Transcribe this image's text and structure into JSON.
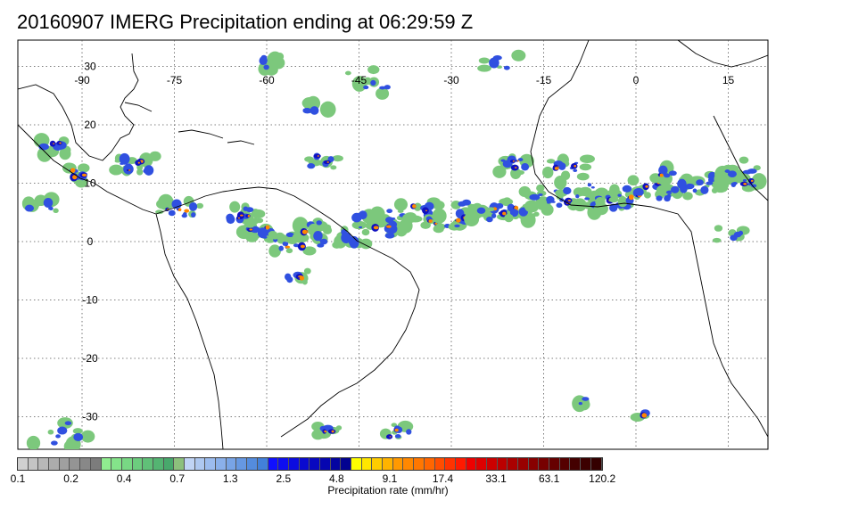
{
  "title": "20160907 IMERG Precipitation ending at 06:29:59 Z",
  "map": {
    "lon_labels": [
      "-90",
      "-75",
      "-60",
      "-45",
      "-30",
      "-15",
      "0",
      "15"
    ],
    "lat_labels": [
      "30",
      "20",
      "10",
      "0",
      "-10",
      "-20",
      "-30"
    ],
    "gridlines": "dotted"
  },
  "colorbar": {
    "caption": "Precipitation rate (mm/hr)",
    "tick_labels": [
      "0.1",
      "0.2",
      "0.4",
      "0.7",
      "1.3",
      "2.5",
      "4.8",
      "9.1",
      "17.4",
      "33.1",
      "63.1",
      "120.2"
    ],
    "colors": [
      "#d0d0d0",
      "#c4c4c4",
      "#b8b8b8",
      "#acacac",
      "#a0a0a0",
      "#949494",
      "#888888",
      "#7c7c7c",
      "#90ee90",
      "#84e48a",
      "#78d884",
      "#6ccc7e",
      "#60c078",
      "#54b472",
      "#48a86c",
      "#8cc07c",
      "#c0d4f4",
      "#aec8f0",
      "#9cbcee",
      "#8ab0ea",
      "#78a4e6",
      "#6698e2",
      "#548cde",
      "#4280da",
      "#1010ff",
      "#0e0ef0",
      "#0c0ce0",
      "#0a0ad0",
      "#0808c0",
      "#0606b0",
      "#0404a0",
      "#020290",
      "#ffff00",
      "#ffe600",
      "#ffcc00",
      "#ffb300",
      "#ff9900",
      "#ff8800",
      "#ff7700",
      "#ff6600",
      "#ff4d00",
      "#ff3300",
      "#ff1a00",
      "#ee0000",
      "#dd0000",
      "#cc0000",
      "#bb0000",
      "#aa0000",
      "#990000",
      "#880000",
      "#770000",
      "#660000",
      "#550000",
      "#440000",
      "#3c0000",
      "#340000"
    ],
    "accent_colors": {
      "light_rain": "#7cc87c",
      "moderate": "#3050e0",
      "heavy": "#1010c0",
      "intense": "#ff8800",
      "extreme": "#ff2200"
    }
  }
}
